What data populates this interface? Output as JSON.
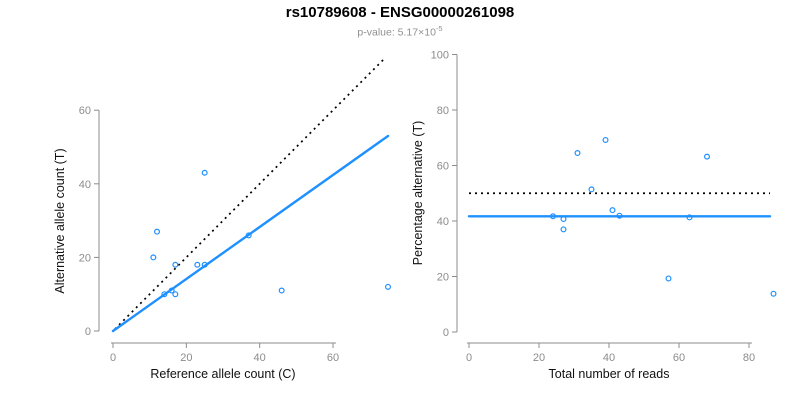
{
  "header": {
    "title": "rs10789608 - ENSG00000261098",
    "subtitle_prefix": "p-value: 5.17×10",
    "subtitle_exponent": "-5"
  },
  "colors": {
    "accent_blue": "#1E90FF",
    "axis_gray": "#8c8c8c",
    "dotted_black": "#000000",
    "subtitle_gray": "#909090"
  },
  "chart_data": [
    {
      "type": "scatter",
      "name": "allele-count-scatter",
      "xlabel": "Reference allele count (C)",
      "ylabel": "Alternative allele count (T)",
      "xticks": [
        0,
        20,
        40,
        60
      ],
      "yticks": [
        0,
        20,
        40,
        60
      ],
      "xlim": [
        0,
        75
      ],
      "ylim": [
        0,
        74
      ],
      "grid": false,
      "points": [
        [
          11,
          20
        ],
        [
          12,
          27
        ],
        [
          14,
          10
        ],
        [
          16,
          11
        ],
        [
          17,
          10
        ],
        [
          17,
          18
        ],
        [
          23,
          18
        ],
        [
          25,
          18
        ],
        [
          25,
          43
        ],
        [
          37,
          26
        ],
        [
          46,
          11
        ],
        [
          75,
          12
        ]
      ],
      "lines": [
        {
          "name": "identity-line",
          "style": "dotted",
          "color": "#000000",
          "x1": 0.5,
          "y1": 0.5,
          "x2": 74,
          "y2": 74
        },
        {
          "name": "fit-line",
          "style": "solid",
          "color": "#1E90FF",
          "x1": 0,
          "y1": 0,
          "x2": 75,
          "y2": 53
        }
      ]
    },
    {
      "type": "scatter",
      "name": "percentage-vs-reads-scatter",
      "xlabel": "Total number of reads",
      "ylabel": "Percentage alternative (T)",
      "xticks": [
        0,
        20,
        40,
        60,
        80
      ],
      "yticks": [
        0,
        20,
        40,
        60,
        80,
        100
      ],
      "xlim": [
        0,
        87
      ],
      "ylim": [
        0,
        100
      ],
      "grid": false,
      "points": [
        [
          24,
          41.7
        ],
        [
          27,
          40.7
        ],
        [
          27,
          37.0
        ],
        [
          31,
          64.5
        ],
        [
          35,
          51.4
        ],
        [
          39,
          69.2
        ],
        [
          41,
          43.9
        ],
        [
          43,
          41.9
        ],
        [
          57,
          19.3
        ],
        [
          63,
          41.3
        ],
        [
          68,
          63.2
        ],
        [
          87,
          13.8
        ]
      ],
      "lines": [
        {
          "name": "expected-50-percent-line",
          "style": "dotted",
          "color": "#000000",
          "x1": 0,
          "y1": 50,
          "x2": 86,
          "y2": 50
        },
        {
          "name": "mean-percentage-line",
          "style": "solid",
          "color": "#1E90FF",
          "x1": 0,
          "y1": 41.7,
          "x2": 86,
          "y2": 41.7
        }
      ]
    }
  ]
}
